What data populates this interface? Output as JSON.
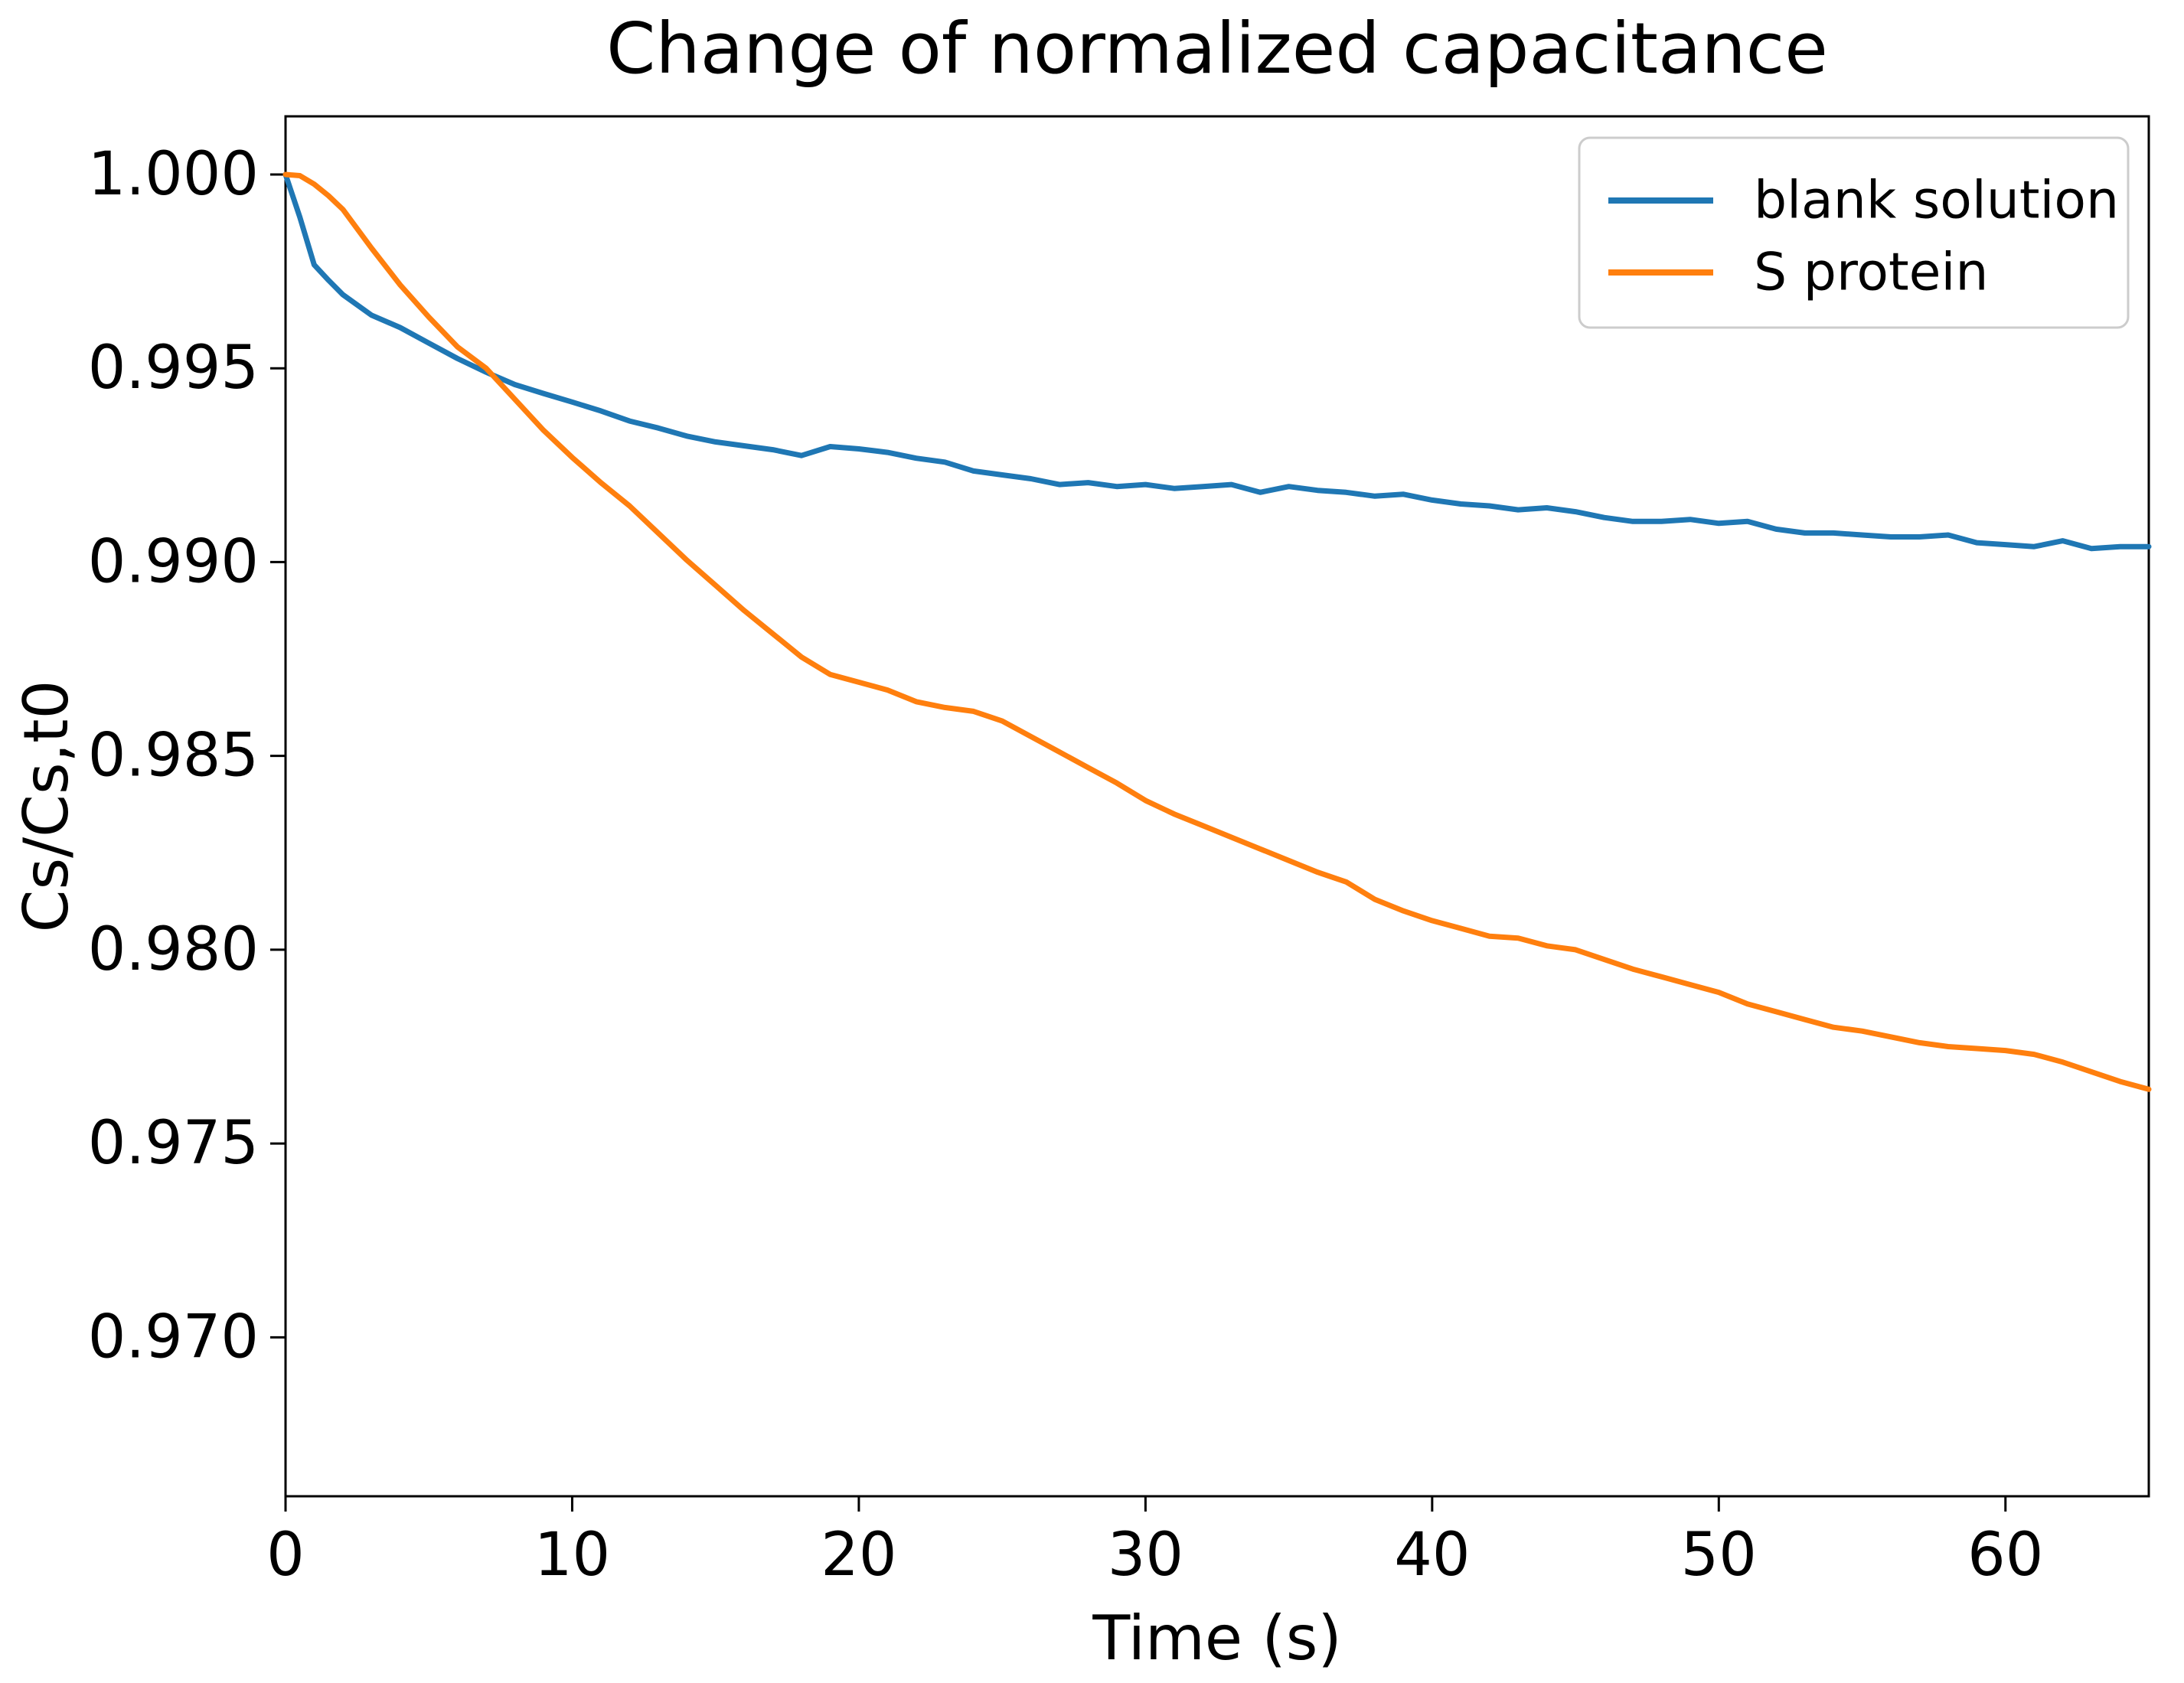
{
  "chart_data": {
    "type": "line",
    "title": "Change of normalized capacitance",
    "xlabel": "Time (s)",
    "ylabel": "Cs/Cs,t0",
    "xlim": [
      0,
      65
    ],
    "ylim": [
      0.9659,
      1.0015
    ],
    "x_ticks": [
      0,
      10,
      20,
      30,
      40,
      50,
      60
    ],
    "x_tick_labels": [
      "0",
      "10",
      "20",
      "30",
      "40",
      "50",
      "60"
    ],
    "y_ticks": [
      1.0,
      0.995,
      0.99,
      0.985,
      0.98,
      0.975,
      0.97
    ],
    "y_tick_labels": [
      "1.000",
      "0.995",
      "0.990",
      "0.985",
      "0.980",
      "0.975",
      "0.970"
    ],
    "grid": false,
    "legend_position": "upper right",
    "background_color": "#ffffff",
    "spine_color": "#000000",
    "x": [
      0,
      0.5,
      1,
      1.5,
      2,
      3,
      4,
      5,
      6,
      7,
      8,
      9,
      10,
      11,
      12,
      13,
      14,
      15,
      16,
      17,
      18,
      19,
      20,
      21,
      22,
      23,
      24,
      25,
      26,
      27,
      28,
      29,
      30,
      31,
      32,
      33,
      34,
      35,
      36,
      37,
      38,
      39,
      40,
      41,
      42,
      43,
      44,
      45,
      46,
      47,
      48,
      49,
      50,
      51,
      52,
      53,
      54,
      55,
      56,
      57,
      58,
      59,
      60,
      61,
      62,
      63,
      64,
      65
    ],
    "series": [
      {
        "name": "blank solution",
        "color": "#1f77b4",
        "values": [
          1.0,
          0.9989,
          0.99767,
          0.99727,
          0.9969,
          0.99637,
          0.99605,
          0.99565,
          0.99525,
          0.9949,
          0.99458,
          0.99435,
          0.99413,
          0.9939,
          0.99364,
          0.99346,
          0.99325,
          0.9931,
          0.993,
          0.9929,
          0.99275,
          0.99298,
          0.99292,
          0.99283,
          0.99268,
          0.99258,
          0.99235,
          0.99225,
          0.99215,
          0.992,
          0.99205,
          0.99195,
          0.992,
          0.9919,
          0.99195,
          0.992,
          0.9918,
          0.99195,
          0.99185,
          0.9918,
          0.9917,
          0.99175,
          0.9916,
          0.9915,
          0.99145,
          0.99135,
          0.9914,
          0.9913,
          0.99115,
          0.99105,
          0.99105,
          0.9911,
          0.991,
          0.99105,
          0.99085,
          0.99075,
          0.99075,
          0.9907,
          0.99065,
          0.99065,
          0.9907,
          0.9905,
          0.99045,
          0.9904,
          0.99055,
          0.99035,
          0.9904,
          0.9904
        ]
      },
      {
        "name": "S protein",
        "color": "#ff7f0e",
        "values": [
          1.0,
          0.99997,
          0.99975,
          0.99945,
          0.9991,
          0.9981,
          0.99715,
          0.99632,
          0.99555,
          0.995,
          0.9942,
          0.9934,
          0.9927,
          0.99205,
          0.99145,
          0.99075,
          0.99005,
          0.9894,
          0.98875,
          0.98815,
          0.98755,
          0.9871,
          0.9869,
          0.9867,
          0.9864,
          0.98625,
          0.98615,
          0.9859,
          0.9855,
          0.9851,
          0.9847,
          0.9843,
          0.98385,
          0.9835,
          0.9832,
          0.9829,
          0.9826,
          0.9823,
          0.982,
          0.98175,
          0.9813,
          0.981,
          0.98075,
          0.98055,
          0.98035,
          0.9803,
          0.9801,
          0.98,
          0.97975,
          0.9795,
          0.9793,
          0.9791,
          0.9789,
          0.9786,
          0.9784,
          0.9782,
          0.978,
          0.9779,
          0.97775,
          0.9776,
          0.9775,
          0.97745,
          0.9774,
          0.9773,
          0.9771,
          0.97685,
          0.9766,
          0.9764
        ]
      }
    ]
  }
}
